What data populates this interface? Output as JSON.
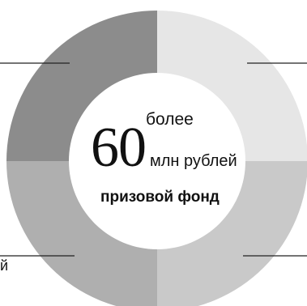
{
  "chart_data": {
    "type": "pie",
    "categories": [
      "",
      "",
      "",
      ""
    ],
    "values": [
      25,
      25,
      25,
      25
    ],
    "colors": [
      "#e6e6e6",
      "#c9c9c9",
      "#afafaf",
      "#8c8c8c"
    ],
    "center": {
      "prefix": "более",
      "value": "60",
      "unit": "млн рублей",
      "caption": "призовой фонд"
    }
  },
  "edge_label": "й"
}
